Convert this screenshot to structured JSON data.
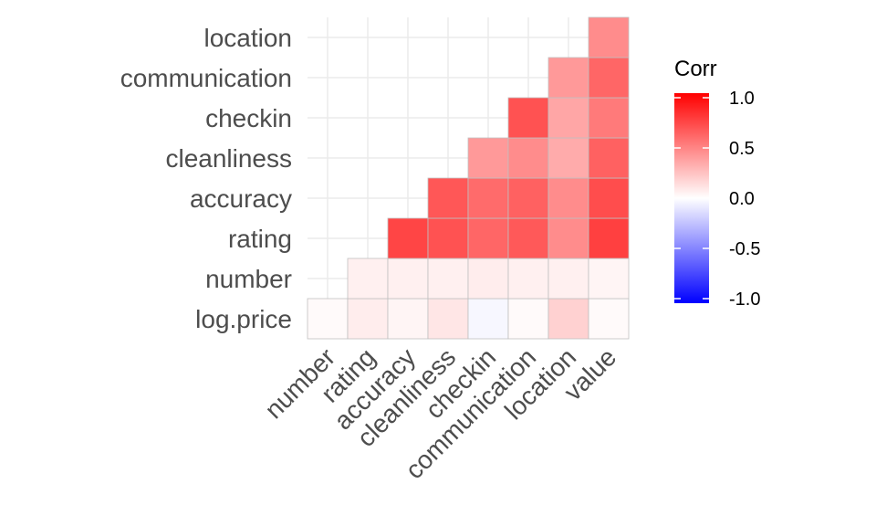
{
  "chart_data": {
    "type": "heatmap",
    "title": "",
    "xlabel": "",
    "ylabel": "",
    "x_categories": [
      "number",
      "rating",
      "accuracy",
      "cleanliness",
      "checkin",
      "communication",
      "location",
      "value"
    ],
    "y_categories": [
      "log.price",
      "number",
      "rating",
      "accuracy",
      "cleanliness",
      "checkin",
      "communication",
      "location"
    ],
    "cells": [
      {
        "x": "number",
        "y": "log.price",
        "value": 0.02
      },
      {
        "x": "rating",
        "y": "log.price",
        "value": 0.07
      },
      {
        "x": "accuracy",
        "y": "log.price",
        "value": 0.04
      },
      {
        "x": "cleanliness",
        "y": "log.price",
        "value": 0.1
      },
      {
        "x": "checkin",
        "y": "log.price",
        "value": -0.03
      },
      {
        "x": "communication",
        "y": "log.price",
        "value": 0.02
      },
      {
        "x": "location",
        "y": "log.price",
        "value": 0.18
      },
      {
        "x": "value",
        "y": "log.price",
        "value": 0.02
      },
      {
        "x": "rating",
        "y": "number",
        "value": 0.06
      },
      {
        "x": "accuracy",
        "y": "number",
        "value": 0.06
      },
      {
        "x": "cleanliness",
        "y": "number",
        "value": 0.06
      },
      {
        "x": "checkin",
        "y": "number",
        "value": 0.07
      },
      {
        "x": "communication",
        "y": "number",
        "value": 0.06
      },
      {
        "x": "location",
        "y": "number",
        "value": 0.06
      },
      {
        "x": "value",
        "y": "number",
        "value": 0.04
      },
      {
        "x": "accuracy",
        "y": "rating",
        "value": 0.73
      },
      {
        "x": "cleanliness",
        "y": "rating",
        "value": 0.68
      },
      {
        "x": "checkin",
        "y": "rating",
        "value": 0.6
      },
      {
        "x": "communication",
        "y": "rating",
        "value": 0.65
      },
      {
        "x": "location",
        "y": "rating",
        "value": 0.45
      },
      {
        "x": "value",
        "y": "rating",
        "value": 0.75
      },
      {
        "x": "cleanliness",
        "y": "accuracy",
        "value": 0.66
      },
      {
        "x": "checkin",
        "y": "accuracy",
        "value": 0.58
      },
      {
        "x": "communication",
        "y": "accuracy",
        "value": 0.62
      },
      {
        "x": "location",
        "y": "accuracy",
        "value": 0.45
      },
      {
        "x": "value",
        "y": "accuracy",
        "value": 0.7
      },
      {
        "x": "checkin",
        "y": "cleanliness",
        "value": 0.4
      },
      {
        "x": "communication",
        "y": "cleanliness",
        "value": 0.45
      },
      {
        "x": "location",
        "y": "cleanliness",
        "value": 0.33
      },
      {
        "x": "value",
        "y": "cleanliness",
        "value": 0.62
      },
      {
        "x": "communication",
        "y": "checkin",
        "value": 0.68
      },
      {
        "x": "location",
        "y": "checkin",
        "value": 0.35
      },
      {
        "x": "value",
        "y": "checkin",
        "value": 0.52
      },
      {
        "x": "location",
        "y": "communication",
        "value": 0.4
      },
      {
        "x": "value",
        "y": "communication",
        "value": 0.6
      },
      {
        "x": "value",
        "y": "location",
        "value": 0.45
      }
    ],
    "legend": {
      "title": "Corr",
      "ticks": [
        1.0,
        0.5,
        0.0,
        -0.5,
        -1.0
      ],
      "tick_labels": [
        "1.0",
        "0.5",
        "0.0",
        "-0.5",
        "-1.0"
      ],
      "range": [
        -1,
        1
      ],
      "colors": {
        "low": "#0000ff",
        "mid": "#ffffff",
        "high": "#ff0000"
      },
      "placement": "right"
    },
    "grid": true
  }
}
